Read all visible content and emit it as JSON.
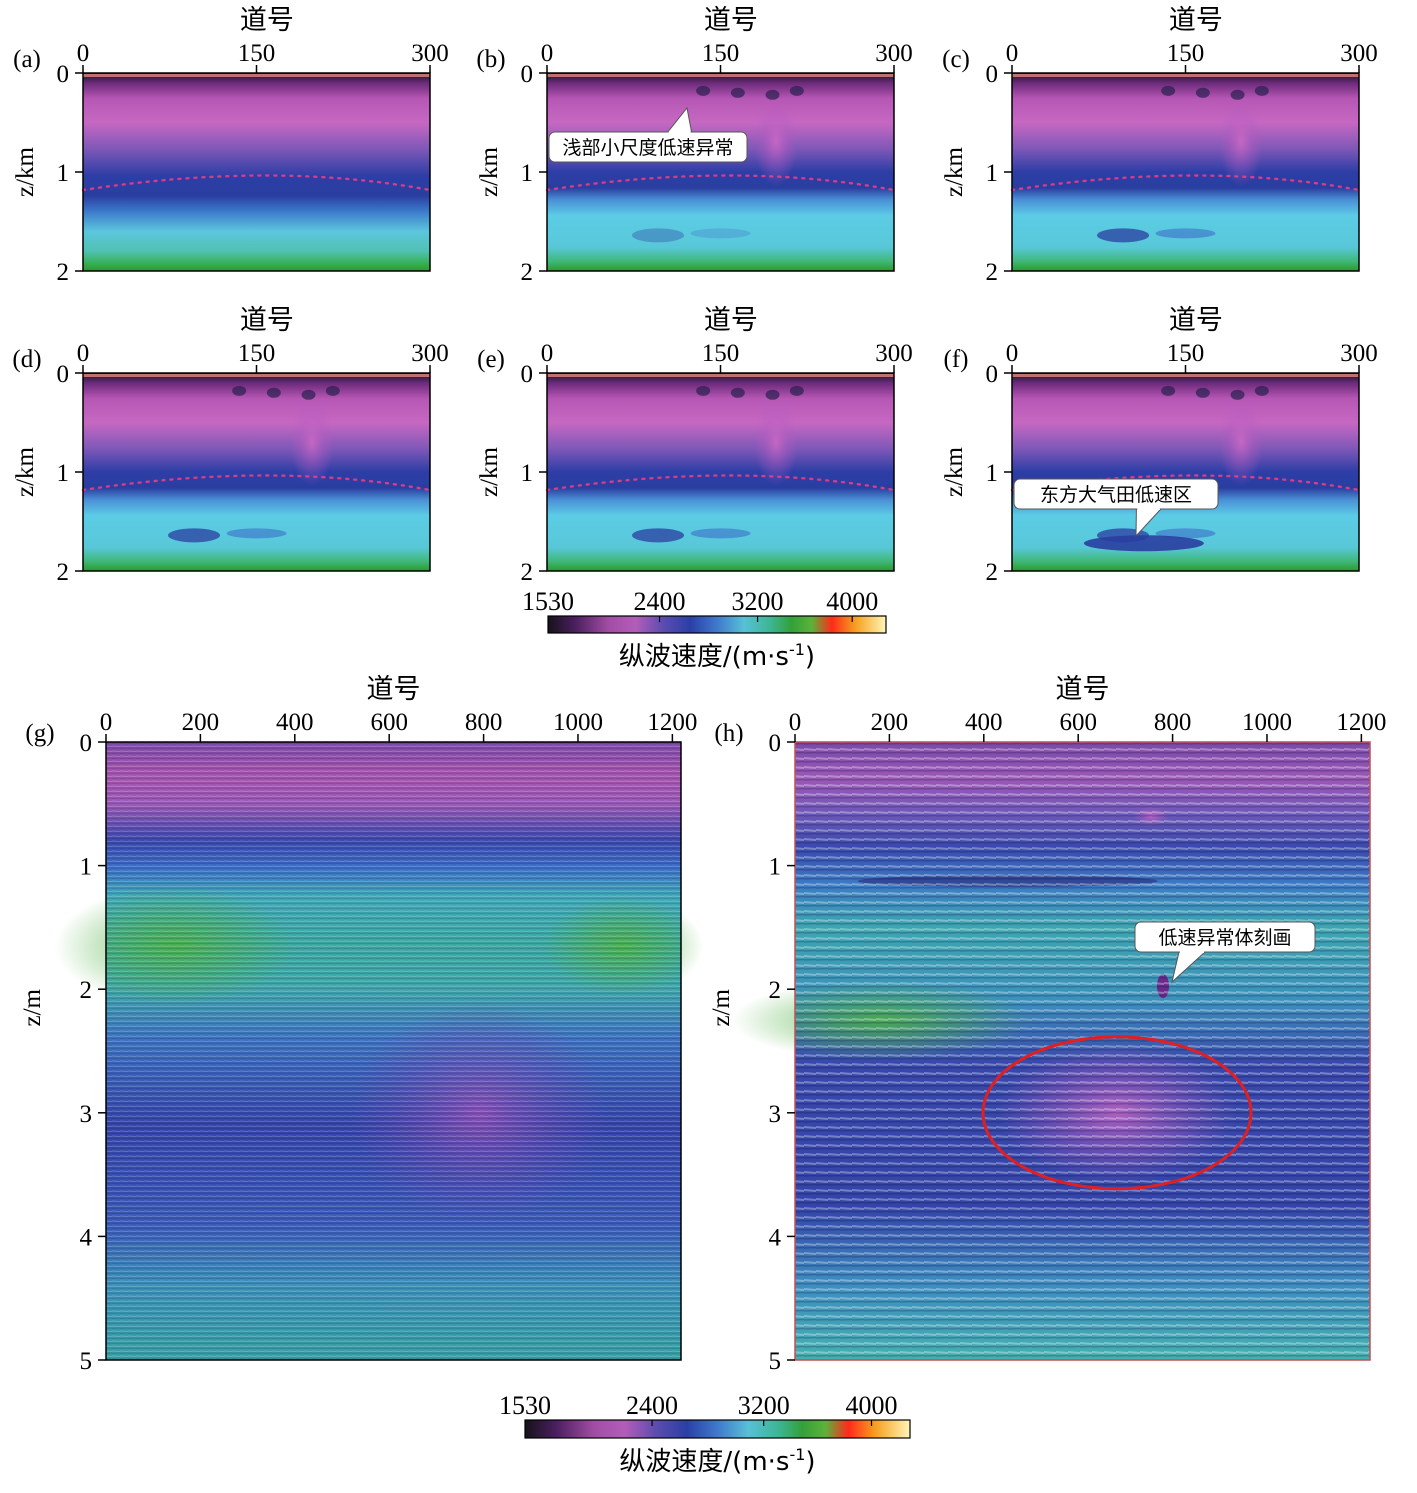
{
  "colors": {
    "cmap": [
      "#15121a",
      "#4a1f5e",
      "#a24da5",
      "#c062be",
      "#7a55b5",
      "#2b3fa6",
      "#3f79cc",
      "#58c0d6",
      "#3db592",
      "#33a03a",
      "#5bb23a",
      "#ff2a1a",
      "#f6a020",
      "#fff0a0"
    ],
    "annotation_ellipse": "#e02020",
    "pink_dots": "#d63c8a"
  },
  "small_panels": [
    {
      "id": "a",
      "label": "(a)",
      "top_label": "道号",
      "xticks": [
        "0",
        "150",
        "300"
      ],
      "yticks": [
        "0",
        "1",
        "2"
      ],
      "ylabel": "z/km",
      "callout": ""
    },
    {
      "id": "b",
      "label": "(b)",
      "top_label": "道号",
      "xticks": [
        "0",
        "150",
        "300"
      ],
      "yticks": [
        "0",
        "1",
        "2"
      ],
      "ylabel": "z/km",
      "callout": "浅部小尺度低速异常"
    },
    {
      "id": "c",
      "label": "(c)",
      "top_label": "道号",
      "xticks": [
        "0",
        "150",
        "300"
      ],
      "yticks": [
        "0",
        "1",
        "2"
      ],
      "ylabel": "z/km",
      "callout": ""
    },
    {
      "id": "d",
      "label": "(d)",
      "top_label": "道号",
      "xticks": [
        "0",
        "150",
        "300"
      ],
      "yticks": [
        "0",
        "1",
        "2"
      ],
      "ylabel": "z/km",
      "callout": ""
    },
    {
      "id": "e",
      "label": "(e)",
      "top_label": "道号",
      "xticks": [
        "0",
        "150",
        "300"
      ],
      "yticks": [
        "0",
        "1",
        "2"
      ],
      "ylabel": "z/km",
      "callout": ""
    },
    {
      "id": "f",
      "label": "(f)",
      "top_label": "道号",
      "xticks": [
        "0",
        "150",
        "300"
      ],
      "yticks": [
        "0",
        "1",
        "2"
      ],
      "ylabel": "z/km",
      "callout": "东方大气田低速区"
    }
  ],
  "large_panels": [
    {
      "id": "g",
      "label": "(g)",
      "top_label": "道号",
      "xticks": [
        "0",
        "200",
        "400",
        "600",
        "800",
        "1000",
        "1200"
      ],
      "yticks": [
        "0",
        "1",
        "2",
        "3",
        "4",
        "5"
      ],
      "ylabel": "z/m",
      "callout": ""
    },
    {
      "id": "h",
      "label": "(h)",
      "top_label": "道号",
      "xticks": [
        "0",
        "200",
        "400",
        "600",
        "800",
        "1000",
        "1200"
      ],
      "yticks": [
        "0",
        "1",
        "2",
        "3",
        "4",
        "5"
      ],
      "ylabel": "z/m",
      "callout": "低速异常体刻画"
    }
  ],
  "colorbars": [
    {
      "id": "top",
      "ticks": [
        "1530",
        "2400",
        "3200",
        "4000"
      ],
      "label": "纵波速度/(m·s",
      "label_sup": "-1",
      "label_end": ")"
    },
    {
      "id": "bottom",
      "ticks": [
        "1530",
        "2400",
        "3200",
        "4000"
      ],
      "label": "纵波速度/(m·s",
      "label_sup": "-1",
      "label_end": ")"
    }
  ]
}
